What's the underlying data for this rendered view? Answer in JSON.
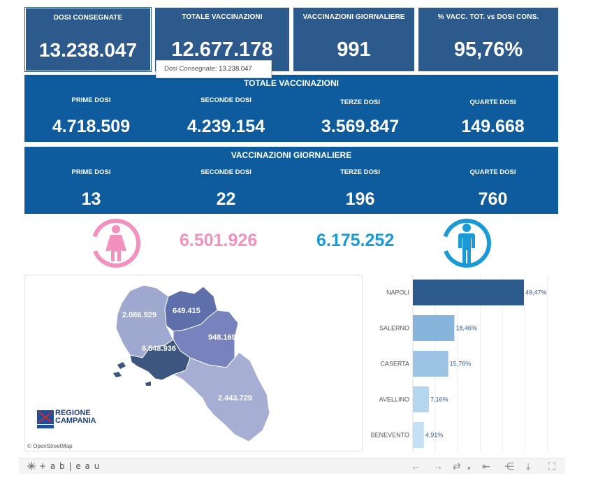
{
  "kpis": [
    {
      "title": "DOSI  CONSEGNATE",
      "value": "13.238.047"
    },
    {
      "title": "TOTALE VACCINAZIONI",
      "value": "12.677.178"
    },
    {
      "title": "VACCINAZIONI GIORNALIERE",
      "value": "991"
    },
    {
      "title": "% VACC. TOT. vs DOSI CONS.",
      "value": "95,76%"
    }
  ],
  "tooltip": {
    "label": "Dosi Consegnate:",
    "value": "13.238.047"
  },
  "totale_band": {
    "title": "TOTALE VACCINAZIONI",
    "items": [
      {
        "label": "PRIME DOSI",
        "value": "4.718.509"
      },
      {
        "label": "SECONDE DOSI",
        "value": "4.239.154"
      },
      {
        "label": "TERZE DOSI",
        "value": "3.569.847"
      },
      {
        "label": "QUARTE DOSI",
        "value": "149.668"
      }
    ]
  },
  "giornaliere_band": {
    "title": "VACCINAZIONI GIORNALIERE",
    "items": [
      {
        "label": "PRIME DOSI",
        "value": "13"
      },
      {
        "label": "SECONDE DOSI",
        "value": "22"
      },
      {
        "label": "TERZE DOSI",
        "value": "196"
      },
      {
        "label": "QUARTE DOSI",
        "value": "760"
      }
    ]
  },
  "gender": {
    "female": {
      "value": "6.501.926",
      "color": "#f291bd",
      "icon": "female-icon"
    },
    "male": {
      "value": "6.175.252",
      "color": "#1a9ad6",
      "icon": "male-icon"
    }
  },
  "map": {
    "labels": {
      "caserta": "2.086.929",
      "benevento": "649.415",
      "avellino": "948.169",
      "napoli": "6.548.936",
      "salerno": "2.443.729"
    },
    "logo": {
      "line1": "REGIONE",
      "line2": "CAMPANIA"
    },
    "attribution": "© OpenStreetMap"
  },
  "chart_data": {
    "type": "bar",
    "orientation": "horizontal",
    "categories": [
      "NAPOLI",
      "SALERNO",
      "CASERTA",
      "AVELLINO",
      "BENEVENTO"
    ],
    "values": [
      49.47,
      18.46,
      15.76,
      7.16,
      4.91
    ],
    "labels": [
      "49,47%",
      "18,46%",
      "15,76%",
      "7,16%",
      "4,91%"
    ],
    "colors": [
      "#2d5a8c",
      "#86b4db",
      "#9cc3e3",
      "#b5d6ef",
      "#c5e0f4"
    ],
    "xlim": [
      0,
      60
    ],
    "grid": true
  },
  "toolbar": {
    "brand": "+ a b | e a u",
    "icons": [
      "undo-icon",
      "redo-icon",
      "revert-icon",
      "reset-icon",
      "share-icon",
      "download-icon",
      "fullscreen-icon"
    ]
  }
}
